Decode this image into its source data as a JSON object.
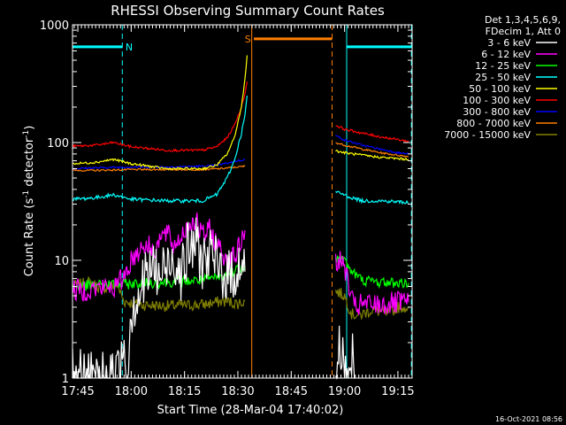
{
  "chart_data": {
    "type": "line",
    "title": "RHESSI Observing Summary Count Rates",
    "xlabel": "Start Time (28-Mar-04 17:40:02)",
    "ylabel_main": "Count Rate (s",
    "ylabel_sup1": "-1",
    "ylabel_mid": " detector",
    "ylabel_sup2": "-1",
    "ylabel_end": ")",
    "yscale": "log",
    "ylim": [
      1,
      1000
    ],
    "xlim_min": [
      3.5,
      99.0
    ],
    "x_ticks": [
      {
        "label": "17:45",
        "t": 5
      },
      {
        "label": "18:00",
        "t": 20
      },
      {
        "label": "18:15",
        "t": 35
      },
      {
        "label": "18:30",
        "t": 50
      },
      {
        "label": "18:45",
        "t": 65
      },
      {
        "label": "19:00",
        "t": 80
      },
      {
        "label": "19:15",
        "t": 95
      }
    ],
    "y_ticks": [
      {
        "label": "1",
        "v": 1
      },
      {
        "label": "10",
        "v": 10
      },
      {
        "label": "100",
        "v": 100
      },
      {
        "label": "1000",
        "v": 1000
      }
    ],
    "legend_header": [
      "Det 1,3,4,5,6,9,",
      "FDecim 1, Att 0"
    ],
    "legend_position": "right",
    "timestamp": "16-Oct-2021 08:56",
    "series": [
      {
        "name": "3 - 6 keV",
        "color": "#ffffff",
        "noise": 0.5,
        "segments": [
          [
            [
              3.5,
              1.0
            ],
            [
              16,
              1.0
            ],
            [
              17,
              1.5
            ],
            [
              18,
              2.0
            ],
            [
              19,
              1.0
            ],
            [
              20,
              4.0
            ],
            [
              22,
              5.0
            ],
            [
              24,
              7.0
            ],
            [
              26,
              9.0
            ],
            [
              28,
              7.0
            ],
            [
              30,
              9.0
            ],
            [
              32,
              11.0
            ],
            [
              34,
              8.0
            ],
            [
              36,
              12.0
            ],
            [
              38,
              14.0
            ],
            [
              40,
              10.0
            ],
            [
              42,
              11.0
            ],
            [
              44,
              9.0
            ],
            [
              46,
              8.0
            ],
            [
              48,
              7.0
            ],
            [
              50,
              9.0
            ],
            [
              52,
              8.0
            ]
          ],
          [
            [
              77.5,
              1.0
            ],
            [
              78,
              1.5
            ],
            [
              79,
              2.0
            ],
            [
              80,
              1.2
            ],
            [
              81,
              1.0
            ],
            [
              82,
              1.5
            ],
            [
              83,
              1.0
            ]
          ]
        ]
      },
      {
        "name": "6 - 12 keV",
        "color": "#ff00ff",
        "noise": 0.2,
        "segments": [
          [
            [
              3.5,
              5.5
            ],
            [
              16,
              6.0
            ],
            [
              18,
              7.5
            ],
            [
              20,
              10.0
            ],
            [
              22,
              12.0
            ],
            [
              24,
              14.0
            ],
            [
              26,
              12.0
            ],
            [
              28,
              15.0
            ],
            [
              30,
              17.0
            ],
            [
              32,
              13.0
            ],
            [
              34,
              16.0
            ],
            [
              36,
              20.0
            ],
            [
              38,
              22.0
            ],
            [
              40,
              16.0
            ],
            [
              42,
              18.0
            ],
            [
              44,
              14.0
            ],
            [
              46,
              11.0
            ],
            [
              48,
              10.0
            ],
            [
              50,
              12.0
            ],
            [
              52,
              18.0
            ]
          ],
          [
            [
              77.5,
              10.0
            ],
            [
              79,
              9.5
            ],
            [
              80,
              9.0
            ],
            [
              81,
              6.5
            ],
            [
              82,
              4.5
            ],
            [
              83,
              4.0
            ],
            [
              85,
              4.2
            ],
            [
              90,
              4.2
            ],
            [
              98,
              4.4
            ]
          ]
        ]
      },
      {
        "name": "12 - 25 keV",
        "color": "#00ff00",
        "noise": 0.09,
        "segments": [
          [
            [
              3.5,
              6.0
            ],
            [
              12,
              6.2
            ],
            [
              20,
              6.3
            ],
            [
              30,
              6.5
            ],
            [
              40,
              6.8
            ],
            [
              46,
              7.2
            ],
            [
              50,
              8.5
            ],
            [
              52,
              9.0
            ]
          ],
          [
            [
              77.5,
              10.5
            ],
            [
              80,
              10.0
            ],
            [
              82,
              8.0
            ],
            [
              85,
              6.8
            ],
            [
              90,
              6.5
            ],
            [
              98,
              6.4
            ]
          ]
        ]
      },
      {
        "name": "25 - 50 keV",
        "color": "#00ffff",
        "noise": 0.03,
        "segments": [
          [
            [
              3.5,
              33
            ],
            [
              10,
              34
            ],
            [
              15,
              36
            ],
            [
              20,
              33
            ],
            [
              30,
              32
            ],
            [
              40,
              32
            ],
            [
              44,
              36
            ],
            [
              47,
              50
            ],
            [
              49,
              70
            ],
            [
              51,
              120
            ],
            [
              52,
              170
            ],
            [
              52.6,
              250
            ]
          ],
          [
            [
              77.5,
              38
            ],
            [
              80,
              36
            ],
            [
              82,
              34
            ],
            [
              85,
              32
            ],
            [
              90,
              32
            ],
            [
              98,
              31
            ]
          ]
        ]
      },
      {
        "name": "50 - 100 keV",
        "color": "#ffff00",
        "noise": 0.02,
        "segments": [
          [
            [
              3.5,
              66
            ],
            [
              10,
              68
            ],
            [
              15,
              72
            ],
            [
              20,
              66
            ],
            [
              30,
              60
            ],
            [
              40,
              60
            ],
            [
              44,
              64
            ],
            [
              47,
              80
            ],
            [
              49,
              110
            ],
            [
              51,
              200
            ],
            [
              52,
              350
            ],
            [
              52.6,
              550
            ]
          ],
          [
            [
              77.5,
              85
            ],
            [
              80,
              82
            ],
            [
              85,
              78
            ],
            [
              90,
              75
            ],
            [
              95,
              73
            ],
            [
              98,
              72
            ]
          ]
        ]
      },
      {
        "name": "100 - 300 keV",
        "color": "#ff0000",
        "noise": 0.02,
        "segments": [
          [
            [
              3.5,
              93
            ],
            [
              10,
              95
            ],
            [
              15,
              100
            ],
            [
              20,
              92
            ],
            [
              30,
              86
            ],
            [
              40,
              86
            ],
            [
              44,
              92
            ],
            [
              47,
              110
            ],
            [
              49,
              140
            ],
            [
              51,
              200
            ],
            [
              52,
              260
            ],
            [
              52.6,
              330
            ]
          ],
          [
            [
              77.5,
              140
            ],
            [
              80,
              130
            ],
            [
              85,
              120
            ],
            [
              90,
              112
            ],
            [
              95,
              106
            ],
            [
              98,
              102
            ]
          ]
        ]
      },
      {
        "name": "300 - 800 keV",
        "color": "#0000ff",
        "noise": 0.015,
        "segments": [
          [
            [
              3.5,
              60
            ],
            [
              10,
              61
            ],
            [
              20,
              62
            ],
            [
              30,
              62
            ],
            [
              40,
              63
            ],
            [
              44,
              64
            ],
            [
              48,
              68
            ],
            [
              52,
              72
            ]
          ],
          [
            [
              77.5,
              115
            ],
            [
              80,
              105
            ],
            [
              85,
              95
            ],
            [
              90,
              88
            ],
            [
              95,
              82
            ],
            [
              98,
              80
            ]
          ]
        ]
      },
      {
        "name": "800 - 7000 keV",
        "color": "#ff7f00",
        "noise": 0.015,
        "segments": [
          [
            [
              3.5,
              58
            ],
            [
              10,
              58
            ],
            [
              20,
              59
            ],
            [
              30,
              59
            ],
            [
              40,
              59
            ],
            [
              45,
              60
            ],
            [
              50,
              62
            ],
            [
              52,
              63
            ]
          ],
          [
            [
              77.5,
              100
            ],
            [
              80,
              95
            ],
            [
              85,
              88
            ],
            [
              90,
              82
            ],
            [
              95,
              78
            ],
            [
              98,
              76
            ]
          ]
        ]
      },
      {
        "name": "7000 - 15000 keV",
        "color": "#808000",
        "noise": 0.1,
        "segments": [
          [
            [
              3.5,
              6.0
            ],
            [
              8,
              6.5
            ],
            [
              12,
              5.8
            ],
            [
              16,
              6.2
            ],
            [
              18,
              4.5
            ],
            [
              22,
              4.2
            ],
            [
              30,
              4.1
            ],
            [
              40,
              4.2
            ],
            [
              46,
              4.5
            ],
            [
              50,
              4.3
            ],
            [
              52,
              4.5
            ]
          ],
          [
            [
              77.5,
              5.5
            ],
            [
              80,
              5.0
            ],
            [
              82,
              3.5
            ],
            [
              84,
              3.4
            ],
            [
              88,
              3.8
            ],
            [
              92,
              3.5
            ],
            [
              95,
              4.0
            ],
            [
              98,
              4.0
            ]
          ]
        ]
      }
    ],
    "annotations": {
      "night_color": "#00ffff",
      "night_level": 650,
      "night_bars": [
        [
          3.5,
          17.5
        ],
        [
          80.6,
          98.8
        ]
      ],
      "night_lines": [
        17.5,
        80.6,
        98.8
      ],
      "night_label": "N",
      "night_label_t": 18.4,
      "saa_color": "#ff7f00",
      "saa_level": 760,
      "saa_bar": [
        54.5,
        76.5
      ],
      "saa_lines": [
        53.9,
        76.5
      ],
      "saa_label": "S",
      "saa_label_t": 52.8
    }
  }
}
